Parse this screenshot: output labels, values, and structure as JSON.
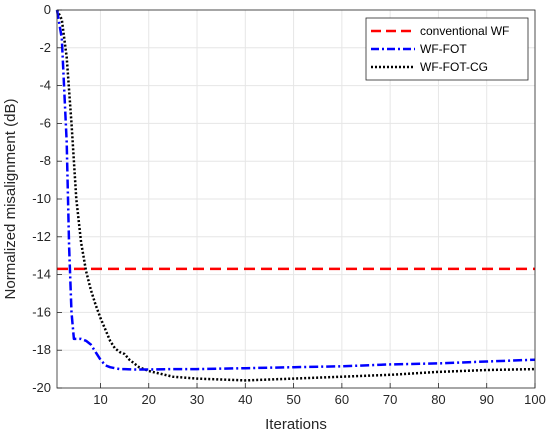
{
  "chart_data": {
    "type": "line",
    "title": "",
    "xlabel": "Iterations",
    "ylabel": "Normalized misalignment (dB)",
    "xlim": [
      1,
      100
    ],
    "ylim": [
      -20,
      0
    ],
    "xticks": [
      10,
      20,
      30,
      40,
      50,
      60,
      70,
      80,
      90,
      100
    ],
    "yticks": [
      0,
      -2,
      -4,
      -6,
      -8,
      -10,
      -12,
      -14,
      -16,
      -18,
      -20
    ],
    "grid": true,
    "legend_position": "top-right",
    "series": [
      {
        "name": "conventional WF",
        "color": "#ff0000",
        "style": "dashed",
        "x": [
          1,
          100
        ],
        "y": [
          -13.7,
          -13.7
        ]
      },
      {
        "name": "WF-FOT",
        "color": "#0000ff",
        "style": "dashdot",
        "x": [
          1,
          2,
          3,
          3.5,
          4,
          4.5,
          5,
          6,
          7,
          8,
          9,
          10,
          11,
          12,
          13,
          14,
          15,
          17,
          20,
          25,
          30,
          40,
          50,
          60,
          70,
          80,
          90,
          100
        ],
        "y": [
          0,
          -1.5,
          -7,
          -12.5,
          -16,
          -17.4,
          -17.4,
          -17.4,
          -17.5,
          -17.7,
          -18.1,
          -18.5,
          -18.8,
          -18.9,
          -18.95,
          -19.0,
          -19.0,
          -19.02,
          -19.02,
          -19.0,
          -19.0,
          -18.95,
          -18.9,
          -18.85,
          -18.75,
          -18.7,
          -18.6,
          -18.5
        ]
      },
      {
        "name": "WF-FOT-CG",
        "color": "#000000",
        "style": "dotted",
        "x": [
          1,
          2,
          3,
          4,
          5,
          6,
          7,
          8,
          9,
          10,
          11,
          12,
          13,
          14,
          15,
          16,
          18,
          20,
          25,
          30,
          35,
          40,
          45,
          50,
          60,
          70,
          80,
          90,
          100
        ],
        "y": [
          0,
          -0.5,
          -2.5,
          -6,
          -10,
          -12.3,
          -13.8,
          -14.8,
          -15.6,
          -16.3,
          -16.9,
          -17.5,
          -17.9,
          -18.1,
          -18.2,
          -18.5,
          -18.9,
          -19.1,
          -19.4,
          -19.5,
          -19.55,
          -19.6,
          -19.55,
          -19.5,
          -19.4,
          -19.3,
          -19.15,
          -19.05,
          -19.0
        ]
      }
    ]
  }
}
